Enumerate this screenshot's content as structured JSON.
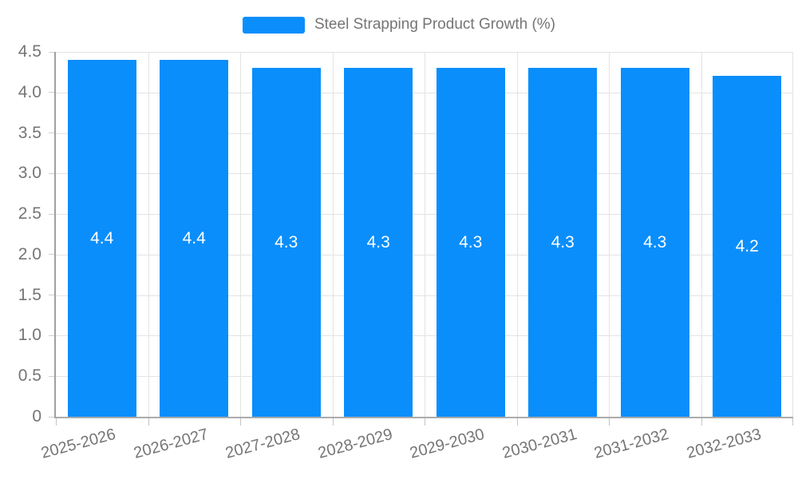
{
  "legend": {
    "label": "Steel Strapping Product Growth (%)"
  },
  "chart_data": {
    "type": "bar",
    "title": "Steel Strapping Product Growth (%)",
    "categories": [
      "2025-2026",
      "2026-2027",
      "2027-2028",
      "2028-2029",
      "2029-2030",
      "2030-2031",
      "2031-2032",
      "2032-2033"
    ],
    "series": [
      {
        "name": "Steel Strapping Product Growth (%)",
        "values": [
          4.4,
          4.4,
          4.3,
          4.3,
          4.3,
          4.3,
          4.3,
          4.2
        ]
      }
    ],
    "value_labels": [
      "4.4",
      "4.4",
      "4.3",
      "4.3",
      "4.3",
      "4.3",
      "4.3",
      "4.2"
    ],
    "xlabel": "",
    "ylabel": "",
    "ylim": [
      0,
      4.5
    ],
    "ytick_step": 0.5,
    "ytick_labels": [
      "0",
      "0.5",
      "1.0",
      "1.5",
      "2.0",
      "2.5",
      "3.0",
      "3.5",
      "4.0",
      "4.5"
    ],
    "x_label_rotation_deg": -15,
    "grid": true,
    "legend_position": "top",
    "colors": {
      "bar": "#0A8EFB",
      "bar_value_text": "#FFFFFF",
      "axis_text": "#757575",
      "grid_line": "#E3E3E3",
      "axis_line": "#A0A0A0",
      "background": "#FFFFFF"
    }
  }
}
